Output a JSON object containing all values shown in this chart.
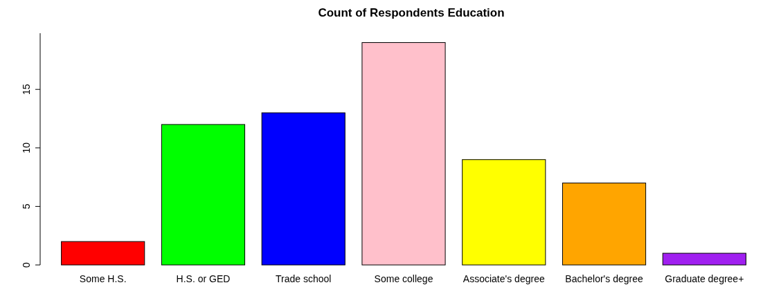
{
  "chart_data": {
    "type": "bar",
    "title": "Count of Respondents Education",
    "categories": [
      "Some H.S.",
      "H.S. or GED",
      "Trade school",
      "Some college",
      "Associate's degree",
      "Bachelor's degree",
      "Graduate degree+"
    ],
    "values": [
      2,
      12,
      13,
      19,
      9,
      7,
      1
    ],
    "colors": [
      "#ff0000",
      "#00ff00",
      "#0000ff",
      "#ffc0cb",
      "#ffff00",
      "#ffa500",
      "#a020f0"
    ],
    "ylim": [
      0,
      19.8
    ],
    "yticks": [
      0,
      5,
      10,
      15
    ],
    "grid": false
  }
}
